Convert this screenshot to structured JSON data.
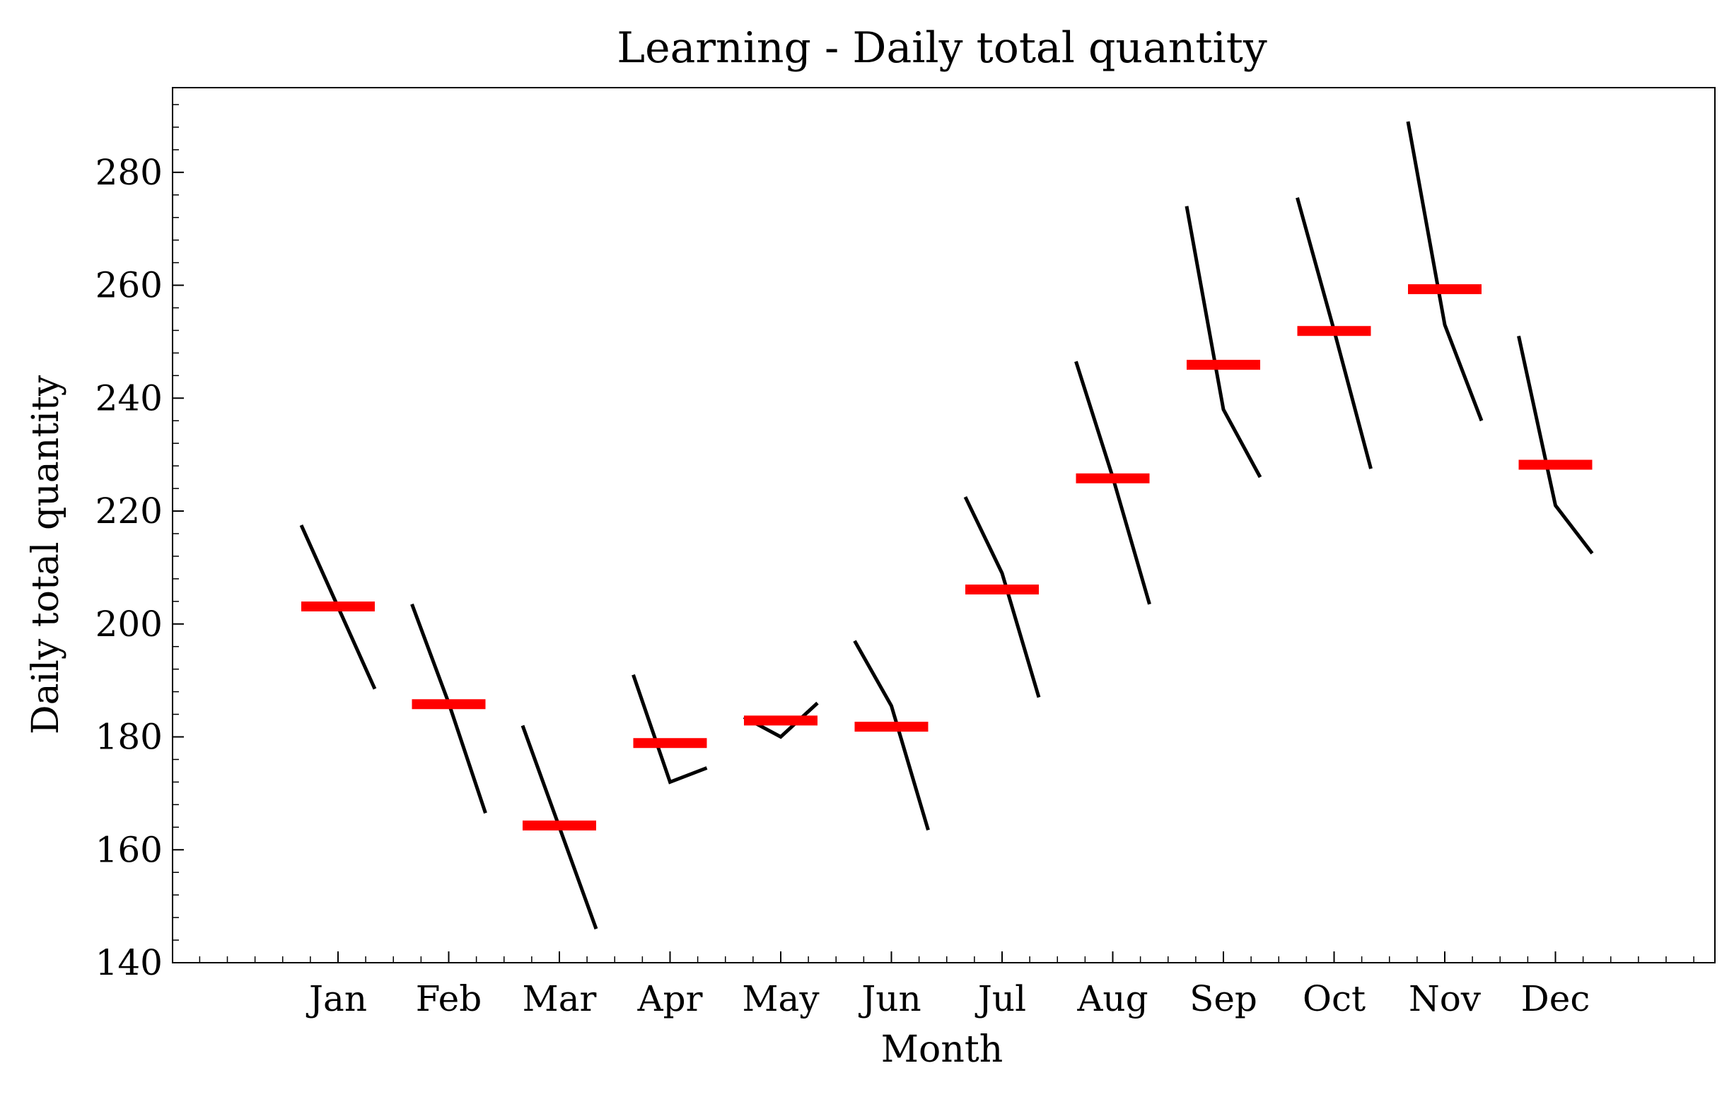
{
  "chart_data": {
    "type": "line",
    "title": "Learning - Daily total quantity",
    "xlabel": "Month",
    "ylabel": "Daily total quantity",
    "ylim": [
      140,
      295
    ],
    "y_ticks": [
      "140",
      "160",
      "180",
      "200",
      "220",
      "240",
      "260",
      "280"
    ],
    "categories": [
      "Jan",
      "Feb",
      "Mar",
      "Apr",
      "May",
      "Jun",
      "Jul",
      "Aug",
      "Sep",
      "Oct",
      "Nov",
      "Dec"
    ],
    "grid": false,
    "series": [
      {
        "values": [
          [
            217.5,
            203,
            188.5
          ],
          [
            203.5,
            186,
            166.5
          ],
          [
            182,
            164,
            146
          ],
          [
            191,
            172,
            174.5
          ],
          [
            183.5,
            180,
            186
          ],
          [
            197,
            185.5,
            163.5
          ],
          [
            222.5,
            209,
            187
          ],
          [
            246.5,
            226,
            203.5
          ],
          [
            274,
            238,
            226
          ],
          [
            275.5,
            252,
            227.5
          ],
          [
            289,
            253,
            236
          ],
          [
            251,
            221,
            212.5
          ]
        ]
      },
      {
        "values": [
          203.1,
          185.8,
          164.3,
          178.9,
          182.9,
          181.8,
          206.1,
          225.8,
          245.9,
          251.9,
          259.3,
          228.2
        ]
      }
    ],
    "colors": {
      "series_line": "#000000",
      "mean": "#ff0000",
      "axes": "#000000"
    }
  }
}
